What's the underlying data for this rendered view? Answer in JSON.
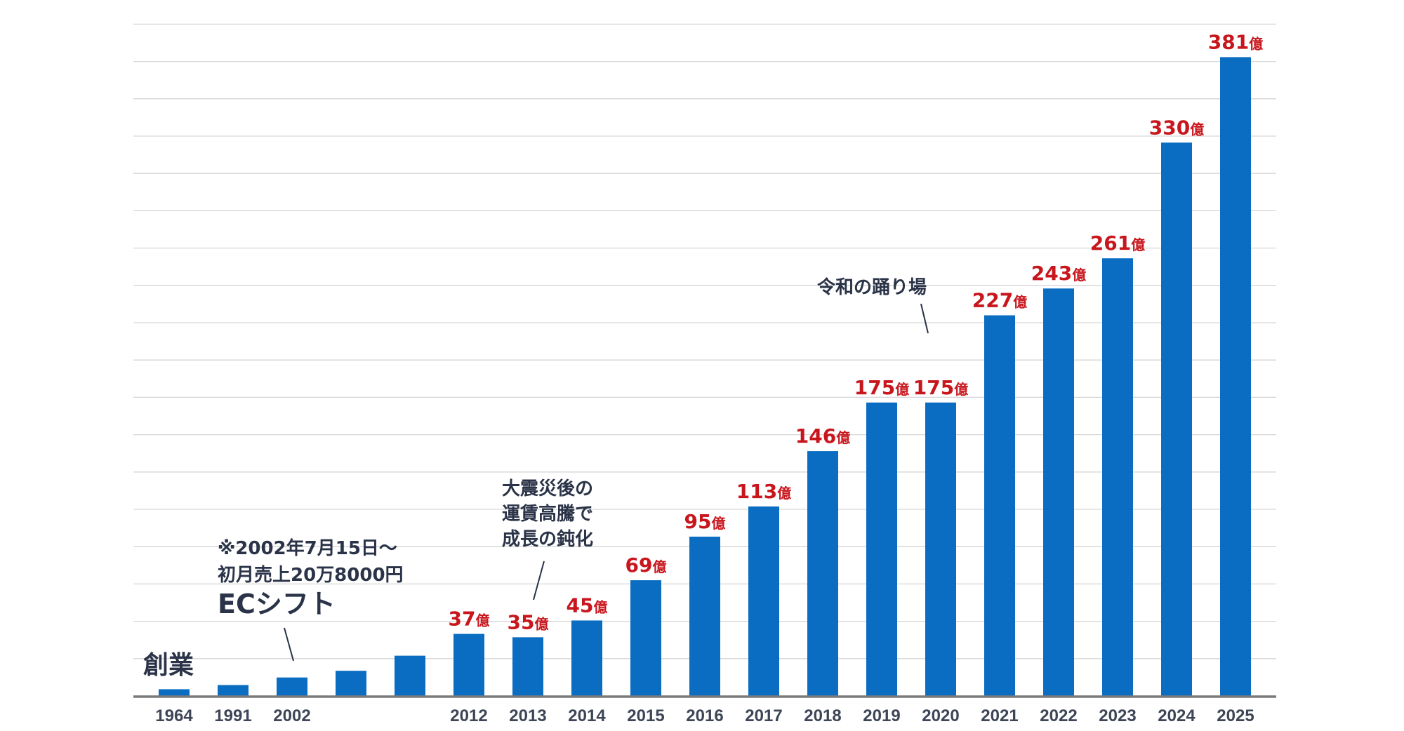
{
  "chart_data": {
    "type": "bar",
    "title": "",
    "xlabel": "",
    "ylabel": "",
    "ylim": [
      0,
      400
    ],
    "grid": true,
    "legend": "none",
    "unit": "億",
    "bar_color": "#0a6dc2",
    "label_color": "#c8161d",
    "categories": [
      "1964",
      "1991",
      "2002",
      "",
      "",
      "2012",
      "2013",
      "2014",
      "2015",
      "2016",
      "2017",
      "2018",
      "2019",
      "2020",
      "2021",
      "2022",
      "2023",
      "2024",
      "2025"
    ],
    "values": [
      4,
      6.5,
      11,
      15,
      24,
      37,
      35,
      45,
      69,
      95,
      113,
      146,
      175,
      175,
      227,
      243,
      261,
      330,
      381
    ],
    "data_labels": [
      "",
      "",
      "",
      "",
      "",
      "37",
      "35",
      "45",
      "69",
      "95",
      "113",
      "146",
      "175",
      "175",
      "227",
      "243",
      "261",
      "330",
      "381"
    ],
    "annotations": [
      {
        "target": "1964",
        "lines": [
          "創業"
        ]
      },
      {
        "target": "2002",
        "lines": [
          "※2002年7月15日～",
          "初月売上20万8000円",
          "ECシフト"
        ]
      },
      {
        "target": "2013",
        "lines": [
          "大震災後の",
          "運賃高騰で",
          "成長の鈍化"
        ]
      },
      {
        "target": "2020",
        "lines": [
          "令和の踊り場"
        ]
      }
    ]
  }
}
